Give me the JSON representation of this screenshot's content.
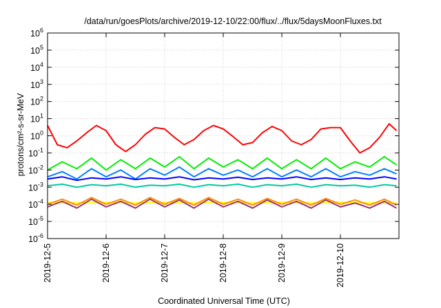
{
  "chart_data": {
    "type": "line",
    "title": "/data/run/goesPlots/archive/2019-12-10/22:00/flux/../flux/5daysMoonFluxes.txt",
    "xlabel": "Coordinated Universal Time (UTC)",
    "ylabel": "protons/cm²-s-sr-MeV",
    "y_scale": "log",
    "ylim": [
      1e-06,
      1000000.0
    ],
    "xlim": [
      "2019-12-05",
      "2019-12-11"
    ],
    "grid": true,
    "x_tick_labels": [
      "2019-12-5",
      "2019-12-6",
      "2019-12-7",
      "2019-12-8",
      "2019-12-9",
      "2019-12-10"
    ],
    "y_tick_labels": [
      {
        "base": "10",
        "exp": "-6"
      },
      {
        "base": "10",
        "exp": "-5"
      },
      {
        "base": "10",
        "exp": "-4"
      },
      {
        "base": "10",
        "exp": "-3"
      },
      {
        "base": "10",
        "exp": "-2"
      },
      {
        "base": "10",
        "exp": "-1"
      },
      {
        "base": "10",
        "exp": "0"
      },
      {
        "base": "10",
        "exp": "1"
      },
      {
        "base": "10",
        "exp": "2"
      },
      {
        "base": "10",
        "exp": "3"
      },
      {
        "base": "10",
        "exp": "4"
      },
      {
        "base": "10",
        "exp": "5"
      },
      {
        "base": "10",
        "exp": "6"
      }
    ],
    "series": [
      {
        "color": "#ff0000",
        "x": [
          "2019-12-05 00:00",
          "2019-12-05 04:00",
          "2019-12-05 08:00",
          "2019-12-05 12:00",
          "2019-12-05 16:00",
          "2019-12-05 20:00",
          "2019-12-06 00:00",
          "2019-12-06 04:00",
          "2019-12-06 08:00",
          "2019-12-06 12:00",
          "2019-12-06 16:00",
          "2019-12-06 20:00",
          "2019-12-07 00:00",
          "2019-12-07 04:00",
          "2019-12-07 08:00",
          "2019-12-07 12:00",
          "2019-12-07 16:00",
          "2019-12-07 20:00",
          "2019-12-08 00:00",
          "2019-12-08 04:00",
          "2019-12-08 08:00",
          "2019-12-08 12:00",
          "2019-12-08 16:00",
          "2019-12-08 20:00",
          "2019-12-09 00:00",
          "2019-12-09 04:00",
          "2019-12-09 08:00",
          "2019-12-09 12:00",
          "2019-12-09 16:00",
          "2019-12-09 20:00",
          "2019-12-10 00:00",
          "2019-12-10 04:00",
          "2019-12-10 08:00",
          "2019-12-10 12:00",
          "2019-12-10 16:00",
          "2019-12-10 20:00",
          "2019-12-10 23:00"
        ],
        "values": [
          4,
          0.3,
          0.2,
          0.5,
          1.5,
          4,
          2,
          0.3,
          0.12,
          0.3,
          1.2,
          3,
          2.5,
          0.8,
          0.3,
          0.6,
          2,
          4,
          2.5,
          0.9,
          0.3,
          0.4,
          1.5,
          3.5,
          2,
          0.5,
          0.3,
          0.6,
          2.5,
          3,
          3,
          0.5,
          0.1,
          0.2,
          0.8,
          5,
          2
        ]
      },
      {
        "color": "#00ee00",
        "x": [
          "2019-12-05 00:00",
          "2019-12-05 06:00",
          "2019-12-05 12:00",
          "2019-12-05 18:00",
          "2019-12-06 00:00",
          "2019-12-06 06:00",
          "2019-12-06 12:00",
          "2019-12-06 18:00",
          "2019-12-07 00:00",
          "2019-12-07 06:00",
          "2019-12-07 12:00",
          "2019-12-07 18:00",
          "2019-12-08 00:00",
          "2019-12-08 06:00",
          "2019-12-08 12:00",
          "2019-12-08 18:00",
          "2019-12-09 00:00",
          "2019-12-09 06:00",
          "2019-12-09 12:00",
          "2019-12-09 18:00",
          "2019-12-10 00:00",
          "2019-12-10 06:00",
          "2019-12-10 12:00",
          "2019-12-10 18:00",
          "2019-12-10 23:00"
        ],
        "values": [
          0.01,
          0.03,
          0.012,
          0.05,
          0.01,
          0.04,
          0.012,
          0.05,
          0.015,
          0.06,
          0.012,
          0.05,
          0.015,
          0.04,
          0.012,
          0.05,
          0.012,
          0.04,
          0.012,
          0.05,
          0.012,
          0.03,
          0.015,
          0.06,
          0.02
        ]
      },
      {
        "color": "#0080ff",
        "x": [
          "2019-12-05 00:00",
          "2019-12-05 06:00",
          "2019-12-05 12:00",
          "2019-12-05 18:00",
          "2019-12-06 00:00",
          "2019-12-06 06:00",
          "2019-12-06 12:00",
          "2019-12-06 18:00",
          "2019-12-07 00:00",
          "2019-12-07 06:00",
          "2019-12-07 12:00",
          "2019-12-07 18:00",
          "2019-12-08 00:00",
          "2019-12-08 06:00",
          "2019-12-08 12:00",
          "2019-12-08 18:00",
          "2019-12-09 00:00",
          "2019-12-09 06:00",
          "2019-12-09 12:00",
          "2019-12-09 18:00",
          "2019-12-10 00:00",
          "2019-12-10 06:00",
          "2019-12-10 12:00",
          "2019-12-10 18:00",
          "2019-12-10 23:00"
        ],
        "values": [
          0.004,
          0.008,
          0.003,
          0.012,
          0.004,
          0.01,
          0.003,
          0.012,
          0.005,
          0.015,
          0.004,
          0.012,
          0.005,
          0.01,
          0.004,
          0.012,
          0.004,
          0.01,
          0.004,
          0.012,
          0.004,
          0.008,
          0.005,
          0.012,
          0.006
        ]
      },
      {
        "color": "#0000ff",
        "x": [
          "2019-12-05 00:00",
          "2019-12-05 06:00",
          "2019-12-05 12:00",
          "2019-12-05 18:00",
          "2019-12-06 00:00",
          "2019-12-06 06:00",
          "2019-12-06 12:00",
          "2019-12-06 18:00",
          "2019-12-07 00:00",
          "2019-12-07 06:00",
          "2019-12-07 12:00",
          "2019-12-07 18:00",
          "2019-12-08 00:00",
          "2019-12-08 06:00",
          "2019-12-08 12:00",
          "2019-12-08 18:00",
          "2019-12-09 00:00",
          "2019-12-09 06:00",
          "2019-12-09 12:00",
          "2019-12-09 18:00",
          "2019-12-10 00:00",
          "2019-12-10 06:00",
          "2019-12-10 12:00",
          "2019-12-10 18:00",
          "2019-12-10 23:00"
        ],
        "values": [
          0.003,
          0.004,
          0.0025,
          0.0035,
          0.003,
          0.004,
          0.0028,
          0.0035,
          0.003,
          0.004,
          0.0027,
          0.0035,
          0.003,
          0.0038,
          0.0028,
          0.0035,
          0.003,
          0.004,
          0.0028,
          0.0035,
          0.0028,
          0.0035,
          0.003,
          0.004,
          0.003
        ]
      },
      {
        "color": "#00c8a0",
        "x": [
          "2019-12-05 00:00",
          "2019-12-05 06:00",
          "2019-12-05 12:00",
          "2019-12-05 18:00",
          "2019-12-06 00:00",
          "2019-12-06 06:00",
          "2019-12-06 12:00",
          "2019-12-06 18:00",
          "2019-12-07 00:00",
          "2019-12-07 06:00",
          "2019-12-07 12:00",
          "2019-12-07 18:00",
          "2019-12-08 00:00",
          "2019-12-08 06:00",
          "2019-12-08 12:00",
          "2019-12-08 18:00",
          "2019-12-09 00:00",
          "2019-12-09 06:00",
          "2019-12-09 12:00",
          "2019-12-09 18:00",
          "2019-12-10 00:00",
          "2019-12-10 06:00",
          "2019-12-10 12:00",
          "2019-12-10 18:00",
          "2019-12-10 23:00"
        ],
        "values": [
          0.0012,
          0.0015,
          0.001,
          0.0014,
          0.0012,
          0.0015,
          0.001,
          0.0013,
          0.0012,
          0.0015,
          0.001,
          0.0014,
          0.0012,
          0.0015,
          0.001,
          0.0014,
          0.0012,
          0.0015,
          0.001,
          0.0014,
          0.0012,
          0.0013,
          0.001,
          0.0014,
          0.0012
        ]
      },
      {
        "color": "#ffff00",
        "x": [
          "2019-12-05 00:00",
          "2019-12-05 12:00",
          "2019-12-06 00:00",
          "2019-12-06 12:00",
          "2019-12-07 00:00",
          "2019-12-07 12:00",
          "2019-12-08 00:00",
          "2019-12-08 12:00",
          "2019-12-09 00:00",
          "2019-12-09 12:00",
          "2019-12-10 00:00",
          "2019-12-10 12:00",
          "2019-12-10 23:00"
        ],
        "values": [
          0.00013,
          0.00012,
          0.00013,
          0.00012,
          0.00013,
          0.00012,
          0.00013,
          0.00012,
          0.00013,
          0.00012,
          0.00013,
          0.00012,
          0.00012
        ]
      },
      {
        "color": "#ff8c00",
        "x": [
          "2019-12-05 00:00",
          "2019-12-05 06:00",
          "2019-12-05 12:00",
          "2019-12-05 18:00",
          "2019-12-06 00:00",
          "2019-12-06 06:00",
          "2019-12-06 12:00",
          "2019-12-06 18:00",
          "2019-12-07 00:00",
          "2019-12-07 06:00",
          "2019-12-07 12:00",
          "2019-12-07 18:00",
          "2019-12-08 00:00",
          "2019-12-08 06:00",
          "2019-12-08 12:00",
          "2019-12-08 18:00",
          "2019-12-09 00:00",
          "2019-12-09 06:00",
          "2019-12-09 12:00",
          "2019-12-09 18:00",
          "2019-12-10 00:00",
          "2019-12-10 06:00",
          "2019-12-10 12:00",
          "2019-12-10 18:00",
          "2019-12-10 23:00"
        ],
        "values": [
          0.0001,
          0.0002,
          9e-05,
          0.00025,
          0.0001,
          0.0002,
          9e-05,
          0.00025,
          0.0001,
          0.00022,
          9e-05,
          0.00025,
          0.0001,
          0.0002,
          9e-05,
          0.00022,
          0.0001,
          0.0002,
          9e-05,
          0.00022,
          0.0001,
          0.00018,
          9e-05,
          0.0002,
          9e-05
        ]
      },
      {
        "color": "#993366",
        "x": [
          "2019-12-05 00:00",
          "2019-12-05 06:00",
          "2019-12-05 12:00",
          "2019-12-05 18:00",
          "2019-12-06 00:00",
          "2019-12-06 06:00",
          "2019-12-06 12:00",
          "2019-12-06 18:00",
          "2019-12-07 00:00",
          "2019-12-07 06:00",
          "2019-12-07 12:00",
          "2019-12-07 18:00",
          "2019-12-08 00:00",
          "2019-12-08 06:00",
          "2019-12-08 12:00",
          "2019-12-08 18:00",
          "2019-12-09 00:00",
          "2019-12-09 06:00",
          "2019-12-09 12:00",
          "2019-12-09 18:00",
          "2019-12-10 00:00",
          "2019-12-10 06:00",
          "2019-12-10 12:00",
          "2019-12-10 18:00",
          "2019-12-10 23:00"
        ],
        "values": [
          7e-05,
          0.00015,
          6e-05,
          0.0002,
          7e-05,
          0.00015,
          6e-05,
          0.0002,
          7e-05,
          0.00018,
          6e-05,
          0.0002,
          7e-05,
          0.00015,
          6e-05,
          0.00018,
          7e-05,
          0.00015,
          6e-05,
          0.00018,
          7e-05,
          0.00012,
          6e-05,
          0.00015,
          6e-05
        ]
      }
    ]
  }
}
